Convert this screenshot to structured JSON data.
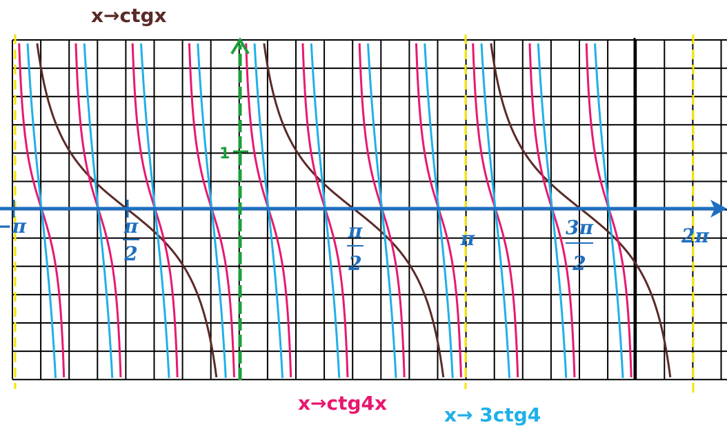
{
  "title": "x→ctgx",
  "legend": [
    "x→ctg4x",
    "x→ 3ctg4"
  ],
  "y_tick": "1",
  "x_labels": [
    {
      "text": "−π"
    },
    {
      "num": "π",
      "den": "2"
    },
    {
      "num": "π",
      "den": "2"
    },
    {
      "text": "π"
    },
    {
      "num": "3π",
      "den": "2"
    },
    {
      "text": "2π"
    }
  ]
}
